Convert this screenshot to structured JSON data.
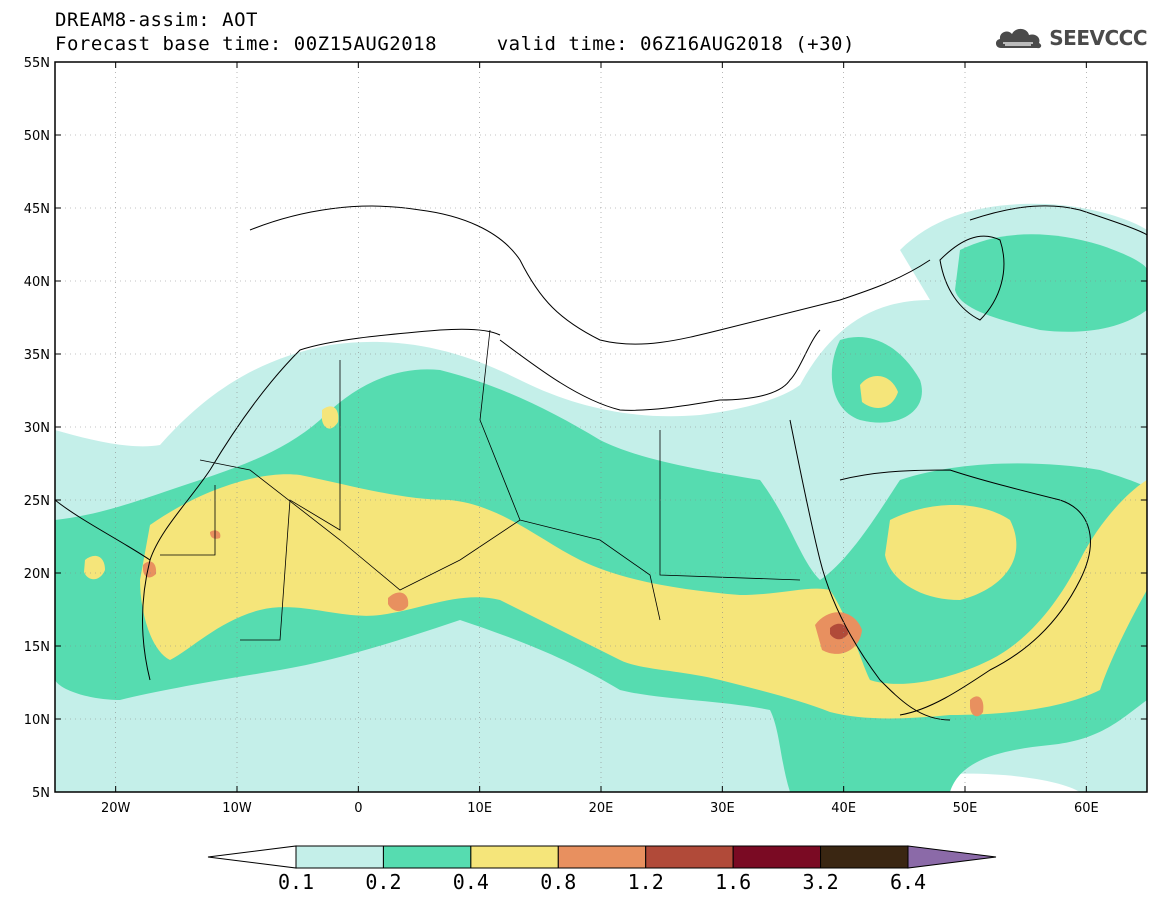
{
  "header": {
    "line1": "DREAM8-assim: AOT",
    "line2": "Forecast base time: 00Z15AUG2018     valid time: 06Z16AUG2018 (+30)"
  },
  "logo": {
    "text": "SEEVCCC",
    "icon": "cloud-icon"
  },
  "map": {
    "lon_range": [
      -25,
      65
    ],
    "lat_range": [
      5,
      55
    ],
    "lon_ticks": [
      {
        "value": -20,
        "label": "20W"
      },
      {
        "value": -10,
        "label": "10W"
      },
      {
        "value": 0,
        "label": "0"
      },
      {
        "value": 10,
        "label": "10E"
      },
      {
        "value": 20,
        "label": "20E"
      },
      {
        "value": 30,
        "label": "30E"
      },
      {
        "value": 40,
        "label": "40E"
      },
      {
        "value": 50,
        "label": "50E"
      },
      {
        "value": 60,
        "label": "60E"
      }
    ],
    "lat_ticks": [
      {
        "value": 55,
        "label": "55N"
      },
      {
        "value": 50,
        "label": "50N"
      },
      {
        "value": 45,
        "label": "45N"
      },
      {
        "value": 40,
        "label": "40N"
      },
      {
        "value": 35,
        "label": "35N"
      },
      {
        "value": 30,
        "label": "30N"
      },
      {
        "value": 25,
        "label": "25N"
      },
      {
        "value": 20,
        "label": "20N"
      },
      {
        "value": 15,
        "label": "15N"
      },
      {
        "value": 10,
        "label": "10N"
      },
      {
        "value": 5,
        "label": "5N"
      }
    ],
    "gridlines": true
  },
  "colorbar": {
    "labels": [
      "0.1",
      "0.2",
      "0.4",
      "0.8",
      "1.2",
      "1.6",
      "3.2",
      "6.4"
    ],
    "colors": [
      "#ffffff",
      "#c4efe9",
      "#56dcb0",
      "#f5e57a",
      "#e8905f",
      "#b14a39",
      "#7a0a23",
      "#3a2612",
      "#8b6aa8"
    ]
  },
  "colors": {
    "c1": "#c4efe9",
    "c2": "#56dcb0",
    "c3": "#f5e57a",
    "c4": "#e8905f",
    "c5": "#b14a39"
  }
}
